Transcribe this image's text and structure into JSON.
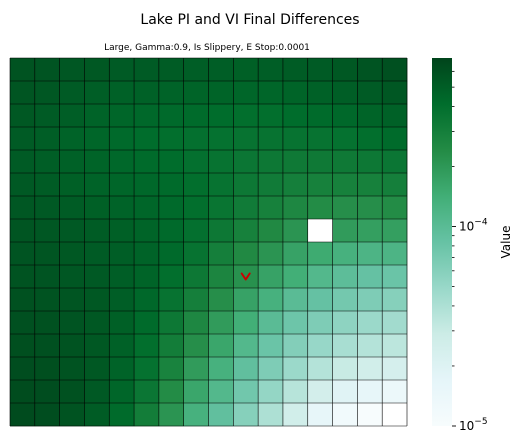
{
  "chart_data": {
    "type": "heatmap",
    "title": "Lake PI and VI Final Differences",
    "subtitle": "Large, Gamma:0.9, Is Slippery, E Stop:0.0001",
    "rows": 16,
    "cols": 16,
    "colorbar": {
      "label": "Value",
      "scale": "log",
      "min": 1e-05,
      "max": 0.0007,
      "ticks": [
        {
          "value": 1e-05,
          "base": "10",
          "exp": "−5"
        },
        {
          "value": 0.0001,
          "base": "10",
          "exp": "−4"
        }
      ],
      "colors": [
        "#f7fcfd",
        "#e5f5f9",
        "#ccece6",
        "#99d8c9",
        "#66c2a4",
        "#41ae76",
        "#238b45",
        "#006d2c",
        "#00441b"
      ]
    },
    "values": [
      [
        0.00058,
        0.00057,
        0.00055,
        0.00054,
        0.00052,
        0.00052,
        0.00051,
        0.0005,
        0.0005,
        0.00049,
        0.0005,
        0.00051,
        0.00052,
        0.00054,
        0.00057,
        0.0006
      ],
      [
        0.00056,
        0.00055,
        0.00052,
        0.0005,
        0.00048,
        0.00048,
        0.00047,
        0.00046,
        0.00046,
        0.00045,
        0.00045,
        0.00046,
        0.00048,
        0.0005,
        0.00052,
        0.00055
      ],
      [
        0.00054,
        0.00052,
        0.0005,
        0.00047,
        0.00045,
        0.00044,
        0.00043,
        0.00042,
        0.00041,
        0.0004,
        0.0004,
        0.00041,
        0.00042,
        0.00044,
        0.00046,
        0.00048
      ],
      [
        0.00052,
        0.0005,
        0.00047,
        0.00045,
        0.00043,
        0.00041,
        0.0004,
        0.00039,
        0.00038,
        0.00037,
        0.00037,
        0.00037,
        0.00037,
        0.00038,
        0.0004,
        0.00042
      ],
      [
        0.00052,
        0.0005,
        0.00048,
        0.00046,
        0.00044,
        0.00042,
        0.00041,
        0.00039,
        0.00037,
        0.00035,
        0.00034,
        0.00033,
        0.00033,
        0.00033,
        0.00034,
        0.00035
      ],
      [
        0.00053,
        0.00051,
        0.00049,
        0.00047,
        0.00045,
        0.00044,
        0.00042,
        0.0004,
        0.00037,
        0.00034,
        0.00032,
        0.0003,
        0.00029,
        0.00029,
        0.00029,
        0.0003
      ],
      [
        0.00055,
        0.00053,
        0.00051,
        0.00049,
        0.00047,
        0.00045,
        0.00043,
        0.0004,
        0.00036,
        0.00032,
        0.00029,
        0.00026,
        0.00024,
        0.00023,
        0.00023,
        0.00024
      ],
      [
        0.00056,
        0.00055,
        0.00053,
        0.00051,
        0.00049,
        0.00046,
        0.00043,
        0.00039,
        0.00034,
        0.00029,
        0.00025,
        0.00021,
        null,
        0.00019,
        0.00018,
        0.00018
      ],
      [
        0.00057,
        0.00056,
        0.00054,
        0.00052,
        0.0005,
        0.00047,
        0.00043,
        0.00037,
        0.0003,
        0.00025,
        0.00021,
        0.00017,
        0.00015,
        0.00013,
        0.00012,
        0.00012
      ],
      [
        0.00058,
        0.00057,
        0.00055,
        0.00053,
        0.0005,
        0.00046,
        0.0004,
        0.00034,
        0.00027,
        0.00022,
        0.00017,
        0.00014,
        0.00011,
        9.5e-05,
        8.5e-05,
        8e-05
      ],
      [
        0.00059,
        0.00058,
        0.00056,
        0.00054,
        0.0005,
        0.00044,
        0.00037,
        0.0003,
        0.00023,
        0.00017,
        0.00013,
        0.0001,
        8.5e-05,
        7.2e-05,
        6.5e-05,
        6e-05
      ],
      [
        0.0006,
        0.00059,
        0.00057,
        0.00054,
        0.00049,
        0.00042,
        0.00034,
        0.00026,
        0.00019,
        0.00014,
        0.0001,
        7.8e-05,
        6.5e-05,
        5.5e-05,
        4.8e-05,
        4.5e-05
      ],
      [
        0.00061,
        0.0006,
        0.00058,
        0.00054,
        0.00048,
        0.0004,
        0.00031,
        0.00023,
        0.00016,
        0.00011,
        8e-05,
        6.2e-05,
        5e-05,
        4.2e-05,
        3.7e-05,
        3.4e-05
      ],
      [
        0.00062,
        0.00061,
        0.00058,
        0.00054,
        0.00047,
        0.00038,
        0.00028,
        0.00019,
        0.00013,
        9e-05,
        6.5e-05,
        4.8e-05,
        3.7e-05,
        3e-05,
        2.6e-05,
        2.4e-05
      ],
      [
        0.00063,
        0.00062,
        0.00059,
        0.00053,
        0.00045,
        0.00035,
        0.00024,
        0.00016,
        0.00011,
        7.5e-05,
        5.2e-05,
        3.6e-05,
        2.5e-05,
        1.9e-05,
        1.6e-05,
        1.4e-05
      ],
      [
        0.00064,
        0.00062,
        0.00058,
        0.00051,
        0.00042,
        0.00031,
        0.00021,
        0.00013,
        9e-05,
        6e-05,
        4e-05,
        2.6e-05,
        1.6e-05,
        1.2e-05,
        1e-05,
        null
      ]
    ],
    "markers": [
      {
        "row": 9,
        "col": 9,
        "symbol": "v",
        "color": "#cc0000"
      }
    ],
    "grid": true,
    "legend": "colorbar-right"
  }
}
